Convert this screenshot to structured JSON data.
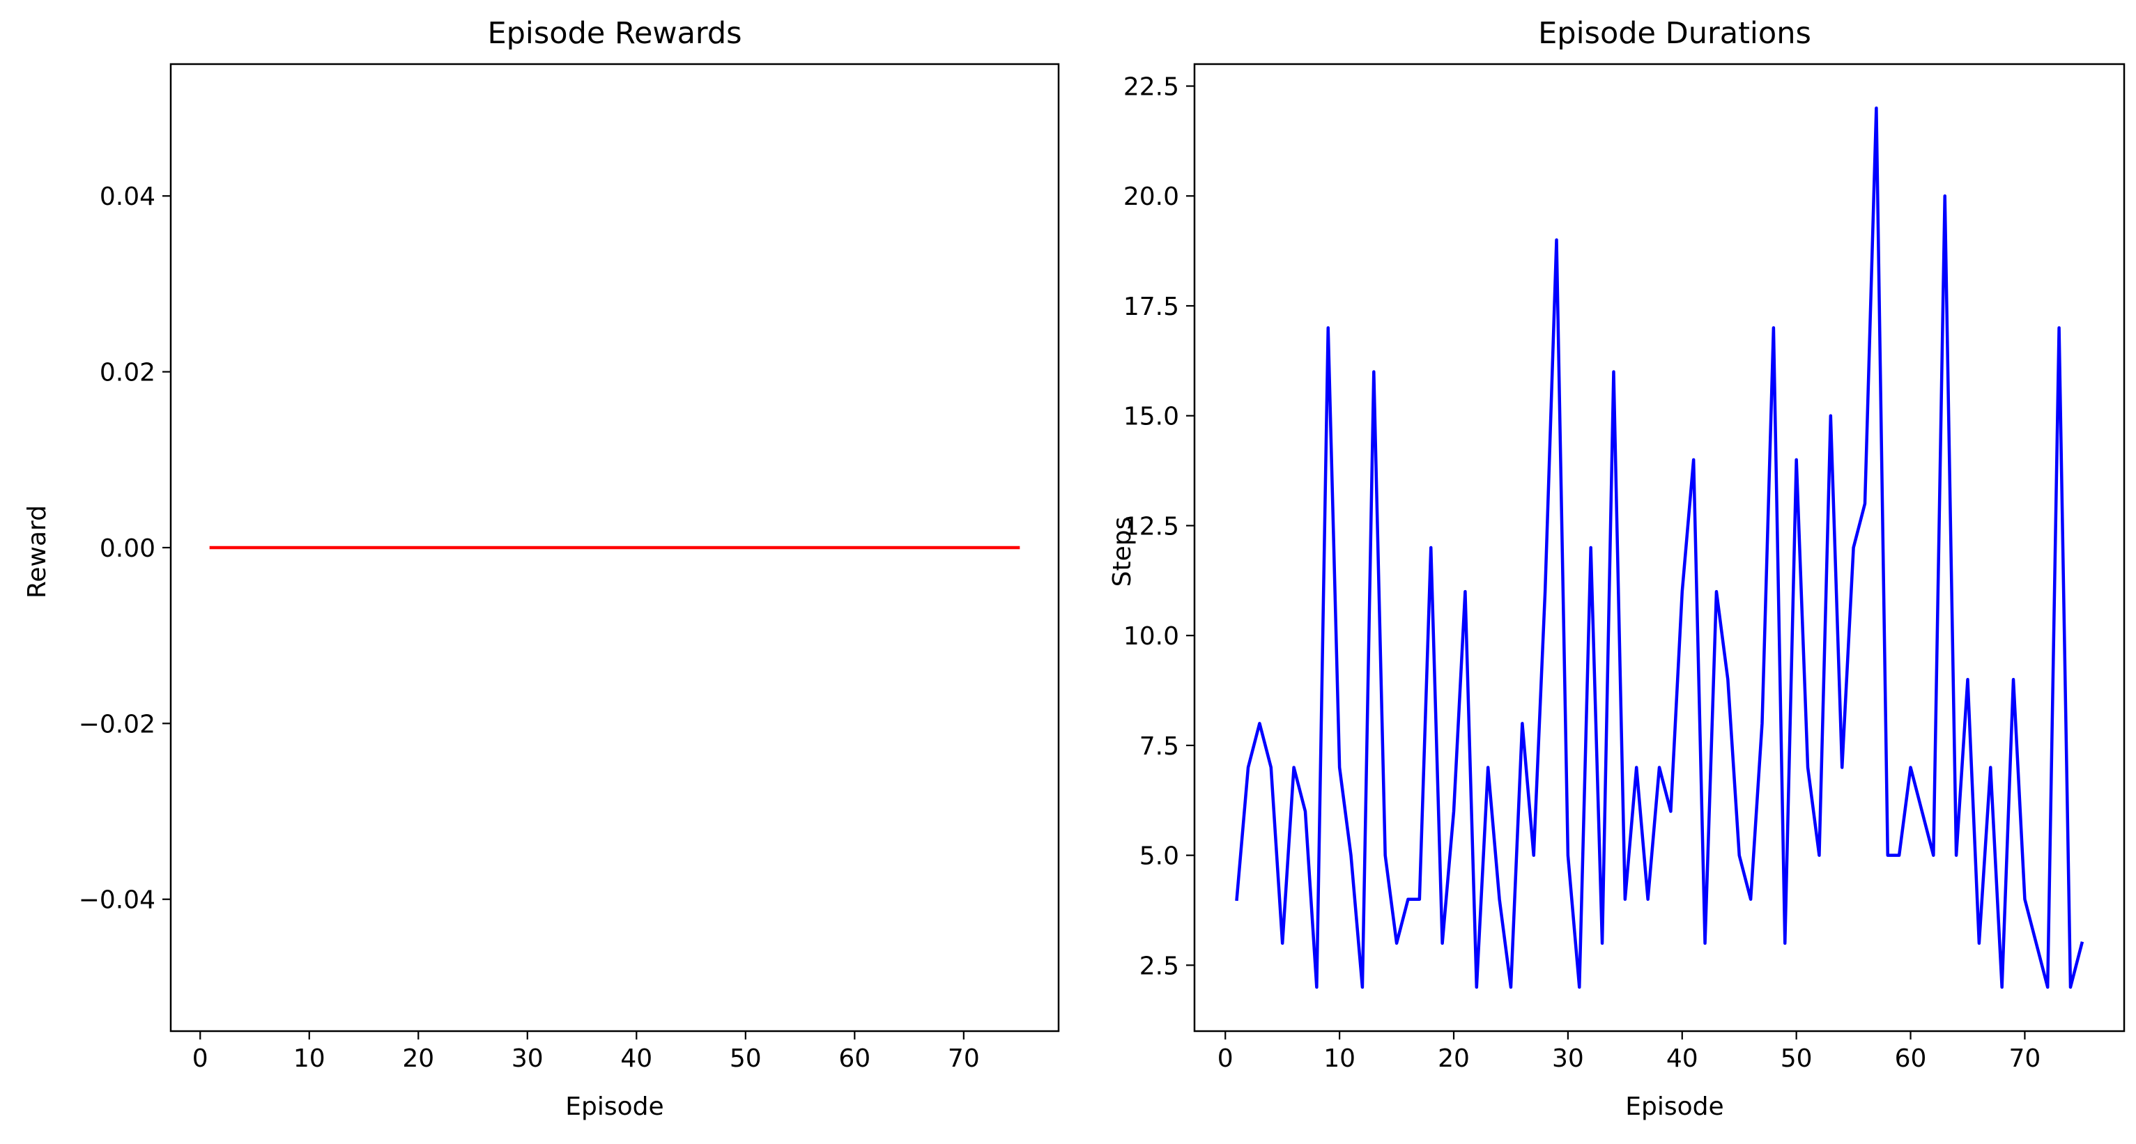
{
  "colors": {
    "rewards_line": "#ff0000",
    "durations_line": "#0000ff",
    "axes": "#000000",
    "background": "#ffffff"
  },
  "chart_data": [
    {
      "type": "line",
      "title": "Episode Rewards",
      "xlabel": "Episode",
      "ylabel": "Reward",
      "xlim": [
        -2.7,
        78.7
      ],
      "ylim": [
        -0.055,
        0.055
      ],
      "xticks": [
        0,
        10,
        20,
        30,
        40,
        50,
        60,
        70
      ],
      "xtick_labels": [
        "0",
        "10",
        "20",
        "30",
        "40",
        "50",
        "60",
        "70"
      ],
      "yticks": [
        -0.04,
        -0.02,
        0.0,
        0.02,
        0.04
      ],
      "ytick_labels": [
        "−0.04",
        "−0.02",
        "0.00",
        "0.02",
        "0.04"
      ],
      "grid": false,
      "series": [
        {
          "color": "#ff0000",
          "x": [
            1,
            75
          ],
          "y": [
            0,
            0
          ]
        }
      ]
    },
    {
      "type": "line",
      "title": "Episode Durations",
      "xlabel": "Episode",
      "ylabel": "Steps",
      "xlim": [
        -2.7,
        78.7
      ],
      "ylim": [
        1.0,
        23.0
      ],
      "xticks": [
        0,
        10,
        20,
        30,
        40,
        50,
        60,
        70
      ],
      "xtick_labels": [
        "0",
        "10",
        "20",
        "30",
        "40",
        "50",
        "60",
        "70"
      ],
      "yticks": [
        2.5,
        5.0,
        7.5,
        10.0,
        12.5,
        15.0,
        17.5,
        20.0,
        22.5
      ],
      "ytick_labels": [
        "2.5",
        "5.0",
        "7.5",
        "10.0",
        "12.5",
        "15.0",
        "17.5",
        "20.0",
        "22.5"
      ],
      "grid": false,
      "series": [
        {
          "color": "#0000ff",
          "x": [
            1,
            2,
            3,
            4,
            5,
            6,
            7,
            8,
            9,
            10,
            11,
            12,
            13,
            14,
            15,
            16,
            17,
            18,
            19,
            20,
            21,
            22,
            23,
            24,
            25,
            26,
            27,
            28,
            29,
            30,
            31,
            32,
            33,
            34,
            35,
            36,
            37,
            38,
            39,
            40,
            41,
            42,
            43,
            44,
            45,
            46,
            47,
            48,
            49,
            50,
            51,
            52,
            53,
            54,
            55,
            56,
            57,
            58,
            59,
            60,
            61,
            62,
            63,
            64,
            65,
            66,
            67,
            68,
            69,
            70,
            71,
            72,
            73,
            74,
            75
          ],
          "y": [
            4,
            7,
            8,
            7,
            3,
            7,
            6,
            2,
            17,
            7,
            5,
            2,
            16,
            5,
            3,
            4,
            4,
            12,
            3,
            6,
            11,
            2,
            7,
            4,
            2,
            8,
            5,
            11,
            19,
            5,
            2,
            12,
            3,
            16,
            4,
            7,
            4,
            7,
            6,
            11,
            14,
            3,
            11,
            9,
            5,
            4,
            8,
            17,
            3,
            14,
            7,
            5,
            15,
            7,
            12,
            13,
            22,
            5,
            5,
            7,
            6,
            5,
            20,
            5,
            9,
            3,
            7,
            2,
            9,
            4,
            3,
            2,
            17,
            2,
            3
          ]
        }
      ]
    }
  ]
}
